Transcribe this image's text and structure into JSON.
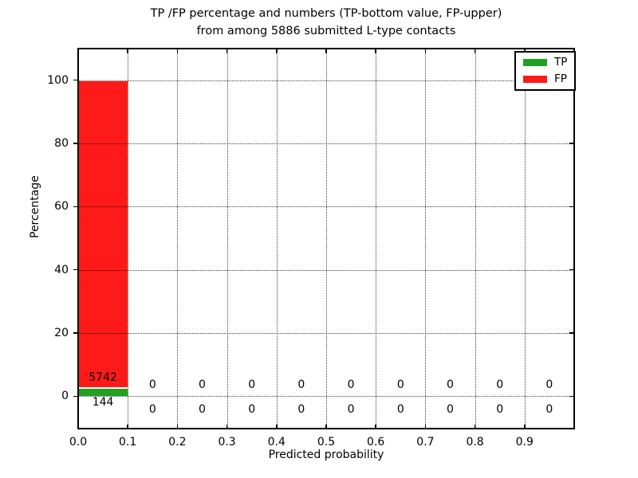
{
  "title": {
    "line1": "TP /FP percentage and numbers (TP-bottom value, FP-upper)",
    "line2": "from among 5886 submitted L-type contacts"
  },
  "axes": {
    "xlabel": "Predicted probability",
    "ylabel": "Percentage",
    "x_tick_labels": [
      "0.0",
      "0.1",
      "0.2",
      "0.3",
      "0.4",
      "0.5",
      "0.6",
      "0.7",
      "0.8",
      "0.9"
    ],
    "y_tick_labels": [
      "0",
      "20",
      "40",
      "60",
      "80",
      "100"
    ]
  },
  "legend": {
    "position": "upper right",
    "items": [
      {
        "label": "TP",
        "color": "#22A022"
      },
      {
        "label": "FP",
        "color": "#FF1A1A"
      }
    ]
  },
  "chart_data": {
    "type": "bar",
    "stacked": true,
    "title": "TP /FP percentage and numbers (TP-bottom value, FP-upper) from among 5886 submitted L-type contacts",
    "xlabel": "Predicted probability",
    "ylabel": "Percentage",
    "total_submitted": 5886,
    "bin_edges": [
      0.0,
      0.1,
      0.2,
      0.3,
      0.4,
      0.5,
      0.6,
      0.7,
      0.8,
      0.9,
      1.0
    ],
    "series": [
      {
        "name": "TP",
        "color": "#22A022",
        "counts": [
          144,
          0,
          0,
          0,
          0,
          0,
          0,
          0,
          0,
          0
        ]
      },
      {
        "name": "FP",
        "color": "#FF1A1A",
        "counts": [
          5742,
          0,
          0,
          0,
          0,
          0,
          0,
          0,
          0,
          0
        ]
      }
    ],
    "percentages": {
      "TP_first_bin": 2.45,
      "FP_first_bin": 97.55
    },
    "annotation_note": "count labels printed per bin: TP bottom value, FP upper value",
    "xlim": [
      0.0,
      1.0
    ],
    "ylim": [
      -10.5,
      110
    ],
    "x_ticks": [
      0.0,
      0.1,
      0.2,
      0.3,
      0.4,
      0.5,
      0.6,
      0.7,
      0.8,
      0.9
    ],
    "y_ticks": [
      0,
      20,
      40,
      60,
      80,
      100
    ],
    "grid": "dotted",
    "legend_position": "upper right"
  }
}
